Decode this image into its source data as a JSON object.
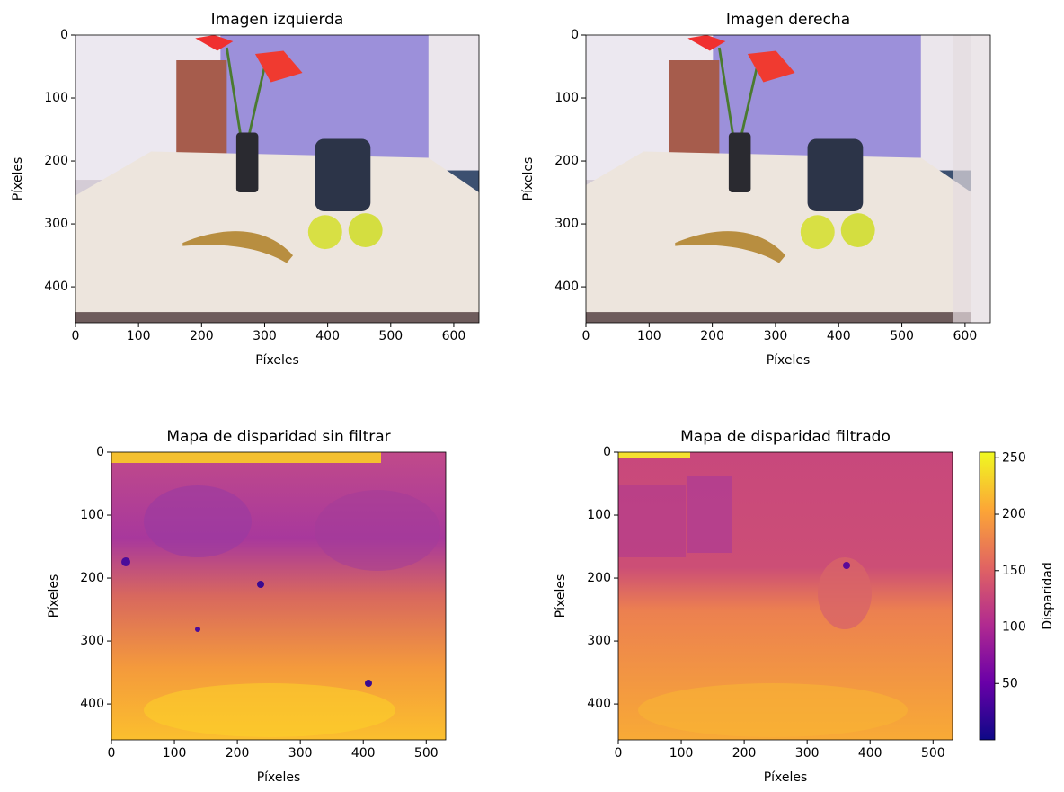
{
  "chart_data": [
    {
      "type": "image",
      "title": "Imagen izquierda",
      "x_label": "Píxeles",
      "y_label": "Píxeles",
      "xlim": [
        0,
        640
      ],
      "ylim": [
        457,
        0
      ],
      "xticks": [
        0,
        100,
        200,
        300,
        400,
        500,
        600
      ],
      "yticks": [
        0,
        100,
        200,
        300,
        400
      ]
    },
    {
      "type": "image",
      "title": "Imagen derecha",
      "x_label": "Píxeles",
      "y_label": "Píxeles",
      "xlim": [
        0,
        640
      ],
      "ylim": [
        457,
        0
      ],
      "xticks": [
        0,
        100,
        200,
        300,
        400,
        500,
        600
      ],
      "yticks": [
        0,
        100,
        200,
        300,
        400
      ]
    },
    {
      "type": "image",
      "title": "Mapa de disparidad sin filtrar",
      "x_label": "Píxeles",
      "y_label": "Píxeles",
      "xlim": [
        0,
        531
      ],
      "ylim": [
        457,
        0
      ],
      "xticks": [
        0,
        100,
        200,
        300,
        400,
        500
      ],
      "yticks": [
        0,
        100,
        200,
        300,
        400
      ]
    },
    {
      "type": "image",
      "title": "Mapa de disparidad filtrado",
      "x_label": "Píxeles",
      "y_label": "Píxeles",
      "xlim": [
        0,
        531
      ],
      "ylim": [
        457,
        0
      ],
      "xticks": [
        0,
        100,
        200,
        300,
        400,
        500
      ],
      "yticks": [
        0,
        100,
        200,
        300,
        400
      ],
      "colorbar": {
        "label": "Disparidad",
        "cmap": "plasma",
        "lim": [
          0,
          255
        ],
        "ticks": [
          50,
          100,
          150,
          200,
          250
        ]
      }
    }
  ]
}
